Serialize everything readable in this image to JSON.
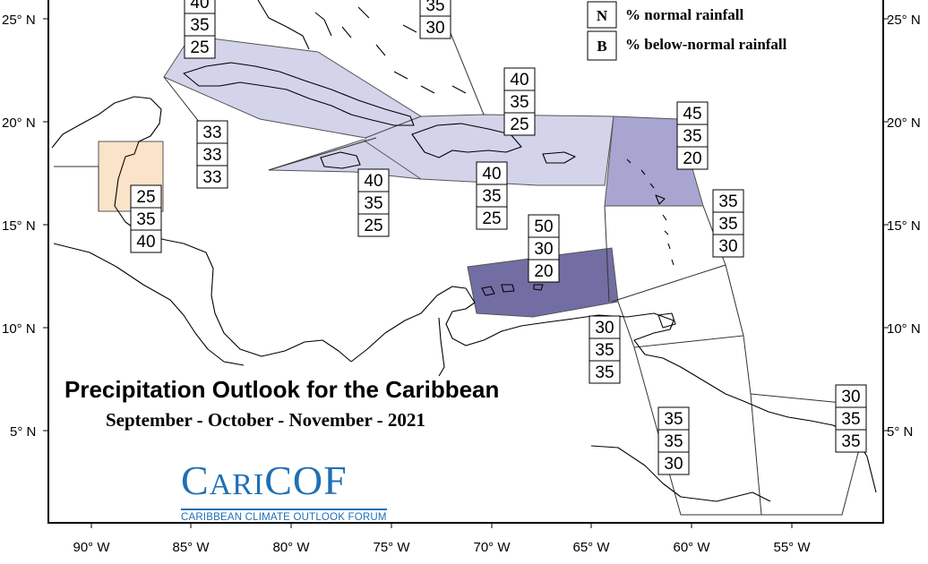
{
  "title": "Precipitation Outlook for the Caribbean",
  "subtitle": "September - October - November - 2021",
  "logo": {
    "name": "CariCOF",
    "tagline": "CARIBBEAN CLIMATE OUTLOOK FORUM"
  },
  "legend": [
    {
      "key": "N",
      "description": "% normal rainfall"
    },
    {
      "key": "B",
      "description": "% below-normal rainfall"
    }
  ],
  "axes": {
    "lat_labels": [
      "25° N",
      "20° N",
      "15° N",
      "10° N",
      "5° N"
    ],
    "lon_labels": [
      "90° W",
      "85° W",
      "80° W",
      "75° W",
      "70° W",
      "65° W",
      "60° W",
      "55° W"
    ]
  },
  "colors": {
    "frame": "#000000",
    "above_light": "#d3d3ea",
    "above_medium": "#a9a5d1",
    "above_dark": "#726ea3",
    "below_light": "#fbe3c9",
    "coast": "#000000"
  },
  "probability_boxes": [
    {
      "region": "bahamas-north",
      "values": [
        "35",
        "30"
      ]
    },
    {
      "region": "cuba",
      "values": [
        "40",
        "35",
        "25"
      ]
    },
    {
      "region": "hispaniola-puerto-rico",
      "values": [
        "40",
        "35",
        "25"
      ]
    },
    {
      "region": "leeward-islands",
      "values": [
        "45",
        "35",
        "20"
      ]
    },
    {
      "region": "cayman-western-caribbean",
      "values": [
        "33",
        "33",
        "33"
      ]
    },
    {
      "region": "belize",
      "values": [
        "25",
        "35",
        "40"
      ]
    },
    {
      "region": "jamaica",
      "values": [
        "40",
        "35",
        "25"
      ]
    },
    {
      "region": "caribbean-sea-central",
      "values": [
        "40",
        "35",
        "25"
      ]
    },
    {
      "region": "abc-islands",
      "values": [
        "50",
        "30",
        "20"
      ]
    },
    {
      "region": "windward-islands",
      "values": [
        "35",
        "35",
        "30"
      ]
    },
    {
      "region": "trinidad-venezuela",
      "values": [
        "30",
        "35",
        "35"
      ]
    },
    {
      "region": "guyana",
      "values": [
        "35",
        "35",
        "30"
      ]
    },
    {
      "region": "suriname-french-guiana",
      "values": [
        "30",
        "35",
        "35"
      ]
    }
  ]
}
